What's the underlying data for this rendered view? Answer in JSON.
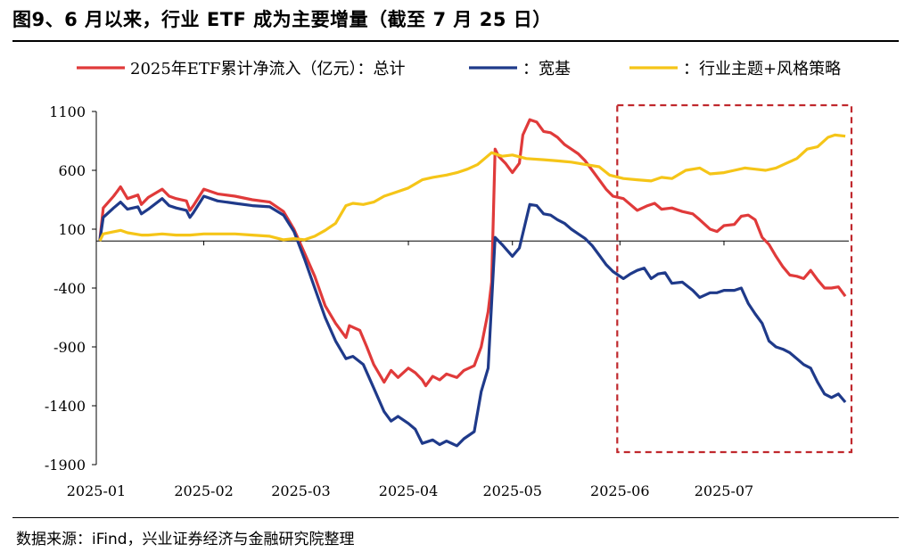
{
  "header": {
    "title": "图9、6 月以来，行业 ETF 成为主要增量（截至 7 月 25 日）"
  },
  "footer": {
    "source": "数据来源：iFind，兴业证券经济与金融研究院整理"
  },
  "chart_data": {
    "type": "line",
    "legend_position": "top",
    "grid": false,
    "ylim": [
      -1900,
      1100
    ],
    "yticks": [
      "1100",
      "600",
      "100",
      "-400",
      "-900",
      "-1400",
      "-1900"
    ],
    "xticks": [
      "2025-01",
      "2025-02",
      "2025-03",
      "2025-04",
      "2025-05",
      "2025-06",
      "2025-07"
    ],
    "highlight_box": {
      "from": "2025-06-01",
      "to": "2025-07-31",
      "color": "#c0282d",
      "style": "dashed"
    },
    "series": [
      {
        "name": "2025年ETF累计净流入（亿元）：总计",
        "color": "#e03a3a",
        "points": [
          [
            "2025-01-02",
            0
          ],
          [
            "2025-01-03",
            280
          ],
          [
            "2025-01-06",
            380
          ],
          [
            "2025-01-07",
            420
          ],
          [
            "2025-01-08",
            460
          ],
          [
            "2025-01-10",
            360
          ],
          [
            "2025-01-13",
            390
          ],
          [
            "2025-01-14",
            310
          ],
          [
            "2025-01-16",
            370
          ],
          [
            "2025-01-20",
            440
          ],
          [
            "2025-01-22",
            380
          ],
          [
            "2025-01-24",
            360
          ],
          [
            "2025-01-27",
            340
          ],
          [
            "2025-01-28",
            260
          ],
          [
            "2025-01-29",
            300
          ],
          [
            "2025-02-01",
            440
          ],
          [
            "2025-02-05",
            400
          ],
          [
            "2025-02-10",
            380
          ],
          [
            "2025-02-15",
            350
          ],
          [
            "2025-02-20",
            330
          ],
          [
            "2025-02-24",
            250
          ],
          [
            "2025-02-27",
            100
          ],
          [
            "2025-03-02",
            -100
          ],
          [
            "2025-03-05",
            -300
          ],
          [
            "2025-03-08",
            -550
          ],
          [
            "2025-03-11",
            -700
          ],
          [
            "2025-03-14",
            -820
          ],
          [
            "2025-03-15",
            -720
          ],
          [
            "2025-03-18",
            -760
          ],
          [
            "2025-03-20",
            -900
          ],
          [
            "2025-03-22",
            -1050
          ],
          [
            "2025-03-25",
            -1200
          ],
          [
            "2025-03-27",
            -1100
          ],
          [
            "2025-03-29",
            -1160
          ],
          [
            "2025-04-01",
            -1080
          ],
          [
            "2025-04-03",
            -1120
          ],
          [
            "2025-04-05",
            -1180
          ],
          [
            "2025-04-06",
            -1230
          ],
          [
            "2025-04-08",
            -1150
          ],
          [
            "2025-04-10",
            -1180
          ],
          [
            "2025-04-12",
            -1130
          ],
          [
            "2025-04-15",
            -1160
          ],
          [
            "2025-04-17",
            -1100
          ],
          [
            "2025-04-20",
            -1060
          ],
          [
            "2025-04-22",
            -900
          ],
          [
            "2025-04-24",
            -600
          ],
          [
            "2025-04-25",
            -350
          ],
          [
            "2025-04-26",
            780
          ],
          [
            "2025-04-27",
            720
          ],
          [
            "2025-04-29",
            660
          ],
          [
            "2025-05-01",
            580
          ],
          [
            "2025-05-03",
            660
          ],
          [
            "2025-05-04",
            900
          ],
          [
            "2025-05-06",
            1030
          ],
          [
            "2025-05-08",
            1010
          ],
          [
            "2025-05-10",
            930
          ],
          [
            "2025-05-12",
            920
          ],
          [
            "2025-05-14",
            880
          ],
          [
            "2025-05-16",
            820
          ],
          [
            "2025-05-18",
            780
          ],
          [
            "2025-05-20",
            740
          ],
          [
            "2025-05-22",
            680
          ],
          [
            "2025-05-24",
            600
          ],
          [
            "2025-05-26",
            520
          ],
          [
            "2025-05-28",
            440
          ],
          [
            "2025-05-30",
            380
          ],
          [
            "2025-06-02",
            360
          ],
          [
            "2025-06-04",
            310
          ],
          [
            "2025-06-06",
            260
          ],
          [
            "2025-06-09",
            300
          ],
          [
            "2025-06-11",
            320
          ],
          [
            "2025-06-13",
            270
          ],
          [
            "2025-06-16",
            280
          ],
          [
            "2025-06-19",
            250
          ],
          [
            "2025-06-22",
            230
          ],
          [
            "2025-06-24",
            180
          ],
          [
            "2025-06-27",
            100
          ],
          [
            "2025-06-29",
            80
          ],
          [
            "2025-07-01",
            130
          ],
          [
            "2025-07-04",
            140
          ],
          [
            "2025-07-06",
            210
          ],
          [
            "2025-07-08",
            220
          ],
          [
            "2025-07-10",
            180
          ],
          [
            "2025-07-12",
            30
          ],
          [
            "2025-07-14",
            -30
          ],
          [
            "2025-07-16",
            -130
          ],
          [
            "2025-07-18",
            -220
          ],
          [
            "2025-07-20",
            -290
          ],
          [
            "2025-07-22",
            -300
          ],
          [
            "2025-07-24",
            -320
          ],
          [
            "2025-07-26",
            -250
          ],
          [
            "2025-07-28",
            -330
          ],
          [
            "2025-07-30",
            -400
          ],
          [
            "2025-08-01",
            -400
          ],
          [
            "2025-08-03",
            -390
          ],
          [
            "2025-08-05",
            -470
          ]
        ]
      },
      {
        "name": "：宽基",
        "color": "#1f3a8a",
        "points": [
          [
            "2025-01-02",
            0
          ],
          [
            "2025-01-03",
            200
          ],
          [
            "2025-01-06",
            280
          ],
          [
            "2025-01-08",
            330
          ],
          [
            "2025-01-10",
            270
          ],
          [
            "2025-01-13",
            290
          ],
          [
            "2025-01-14",
            230
          ],
          [
            "2025-01-16",
            270
          ],
          [
            "2025-01-20",
            360
          ],
          [
            "2025-01-22",
            300
          ],
          [
            "2025-01-24",
            280
          ],
          [
            "2025-01-27",
            260
          ],
          [
            "2025-01-28",
            200
          ],
          [
            "2025-01-29",
            240
          ],
          [
            "2025-02-01",
            380
          ],
          [
            "2025-02-05",
            340
          ],
          [
            "2025-02-10",
            320
          ],
          [
            "2025-02-15",
            300
          ],
          [
            "2025-02-20",
            290
          ],
          [
            "2025-02-24",
            220
          ],
          [
            "2025-02-27",
            80
          ],
          [
            "2025-03-02",
            -150
          ],
          [
            "2025-03-05",
            -400
          ],
          [
            "2025-03-08",
            -650
          ],
          [
            "2025-03-11",
            -850
          ],
          [
            "2025-03-14",
            -1000
          ],
          [
            "2025-03-16",
            -980
          ],
          [
            "2025-03-19",
            -1050
          ],
          [
            "2025-03-22",
            -1250
          ],
          [
            "2025-03-25",
            -1450
          ],
          [
            "2025-03-27",
            -1530
          ],
          [
            "2025-03-29",
            -1490
          ],
          [
            "2025-04-01",
            -1550
          ],
          [
            "2025-04-03",
            -1600
          ],
          [
            "2025-04-05",
            -1720
          ],
          [
            "2025-04-08",
            -1690
          ],
          [
            "2025-04-10",
            -1730
          ],
          [
            "2025-04-12",
            -1700
          ],
          [
            "2025-04-15",
            -1740
          ],
          [
            "2025-04-17",
            -1680
          ],
          [
            "2025-04-20",
            -1620
          ],
          [
            "2025-04-22",
            -1280
          ],
          [
            "2025-04-24",
            -1080
          ],
          [
            "2025-04-26",
            30
          ],
          [
            "2025-04-28",
            -30
          ],
          [
            "2025-05-01",
            -130
          ],
          [
            "2025-05-03",
            -60
          ],
          [
            "2025-05-06",
            310
          ],
          [
            "2025-05-08",
            300
          ],
          [
            "2025-05-10",
            230
          ],
          [
            "2025-05-12",
            220
          ],
          [
            "2025-05-14",
            180
          ],
          [
            "2025-05-16",
            150
          ],
          [
            "2025-05-18",
            100
          ],
          [
            "2025-05-20",
            60
          ],
          [
            "2025-05-22",
            20
          ],
          [
            "2025-05-24",
            -40
          ],
          [
            "2025-05-26",
            -120
          ],
          [
            "2025-05-28",
            -200
          ],
          [
            "2025-05-30",
            -260
          ],
          [
            "2025-06-02",
            -320
          ],
          [
            "2025-06-04",
            -280
          ],
          [
            "2025-06-06",
            -250
          ],
          [
            "2025-06-08",
            -230
          ],
          [
            "2025-06-10",
            -320
          ],
          [
            "2025-06-12",
            -280
          ],
          [
            "2025-06-14",
            -270
          ],
          [
            "2025-06-16",
            -360
          ],
          [
            "2025-06-19",
            -350
          ],
          [
            "2025-06-22",
            -420
          ],
          [
            "2025-06-24",
            -480
          ],
          [
            "2025-06-27",
            -440
          ],
          [
            "2025-06-29",
            -440
          ],
          [
            "2025-07-01",
            -420
          ],
          [
            "2025-07-04",
            -420
          ],
          [
            "2025-07-06",
            -400
          ],
          [
            "2025-07-08",
            -530
          ],
          [
            "2025-07-10",
            -620
          ],
          [
            "2025-07-12",
            -700
          ],
          [
            "2025-07-14",
            -850
          ],
          [
            "2025-07-16",
            -900
          ],
          [
            "2025-07-18",
            -920
          ],
          [
            "2025-07-20",
            -950
          ],
          [
            "2025-07-22",
            -1000
          ],
          [
            "2025-07-24",
            -1050
          ],
          [
            "2025-07-26",
            -1080
          ],
          [
            "2025-07-28",
            -1200
          ],
          [
            "2025-07-30",
            -1300
          ],
          [
            "2025-08-01",
            -1330
          ],
          [
            "2025-08-03",
            -1300
          ],
          [
            "2025-08-05",
            -1370
          ]
        ]
      },
      {
        "name": "：行业主题+风格策略",
        "color": "#f5c518",
        "points": [
          [
            "2025-01-02",
            0
          ],
          [
            "2025-01-03",
            60
          ],
          [
            "2025-01-08",
            90
          ],
          [
            "2025-01-10",
            70
          ],
          [
            "2025-01-14",
            50
          ],
          [
            "2025-01-16",
            50
          ],
          [
            "2025-01-20",
            60
          ],
          [
            "2025-01-24",
            50
          ],
          [
            "2025-01-28",
            50
          ],
          [
            "2025-02-01",
            60
          ],
          [
            "2025-02-05",
            60
          ],
          [
            "2025-02-10",
            60
          ],
          [
            "2025-02-15",
            50
          ],
          [
            "2025-02-20",
            40
          ],
          [
            "2025-02-24",
            10
          ],
          [
            "2025-02-27",
            20
          ],
          [
            "2025-03-02",
            10
          ],
          [
            "2025-03-05",
            40
          ],
          [
            "2025-03-08",
            90
          ],
          [
            "2025-03-11",
            150
          ],
          [
            "2025-03-14",
            300
          ],
          [
            "2025-03-16",
            320
          ],
          [
            "2025-03-19",
            310
          ],
          [
            "2025-03-22",
            330
          ],
          [
            "2025-03-25",
            380
          ],
          [
            "2025-03-28",
            410
          ],
          [
            "2025-04-01",
            450
          ],
          [
            "2025-04-05",
            520
          ],
          [
            "2025-04-08",
            540
          ],
          [
            "2025-04-12",
            560
          ],
          [
            "2025-04-15",
            580
          ],
          [
            "2025-04-18",
            610
          ],
          [
            "2025-04-21",
            650
          ],
          [
            "2025-04-23",
            700
          ],
          [
            "2025-04-25",
            750
          ],
          [
            "2025-04-28",
            720
          ],
          [
            "2025-05-01",
            730
          ],
          [
            "2025-05-05",
            700
          ],
          [
            "2025-05-10",
            690
          ],
          [
            "2025-05-14",
            680
          ],
          [
            "2025-05-18",
            670
          ],
          [
            "2025-05-22",
            650
          ],
          [
            "2025-05-26",
            630
          ],
          [
            "2025-05-29",
            560
          ],
          [
            "2025-06-02",
            530
          ],
          [
            "2025-06-06",
            520
          ],
          [
            "2025-06-10",
            510
          ],
          [
            "2025-06-13",
            540
          ],
          [
            "2025-06-16",
            530
          ],
          [
            "2025-06-20",
            600
          ],
          [
            "2025-06-24",
            620
          ],
          [
            "2025-06-27",
            570
          ],
          [
            "2025-07-01",
            580
          ],
          [
            "2025-07-04",
            600
          ],
          [
            "2025-07-07",
            620
          ],
          [
            "2025-07-10",
            610
          ],
          [
            "2025-07-13",
            600
          ],
          [
            "2025-07-16",
            620
          ],
          [
            "2025-07-19",
            660
          ],
          [
            "2025-07-22",
            700
          ],
          [
            "2025-07-25",
            780
          ],
          [
            "2025-07-28",
            800
          ],
          [
            "2025-07-31",
            880
          ],
          [
            "2025-08-02",
            900
          ],
          [
            "2025-08-05",
            890
          ]
        ]
      }
    ]
  }
}
